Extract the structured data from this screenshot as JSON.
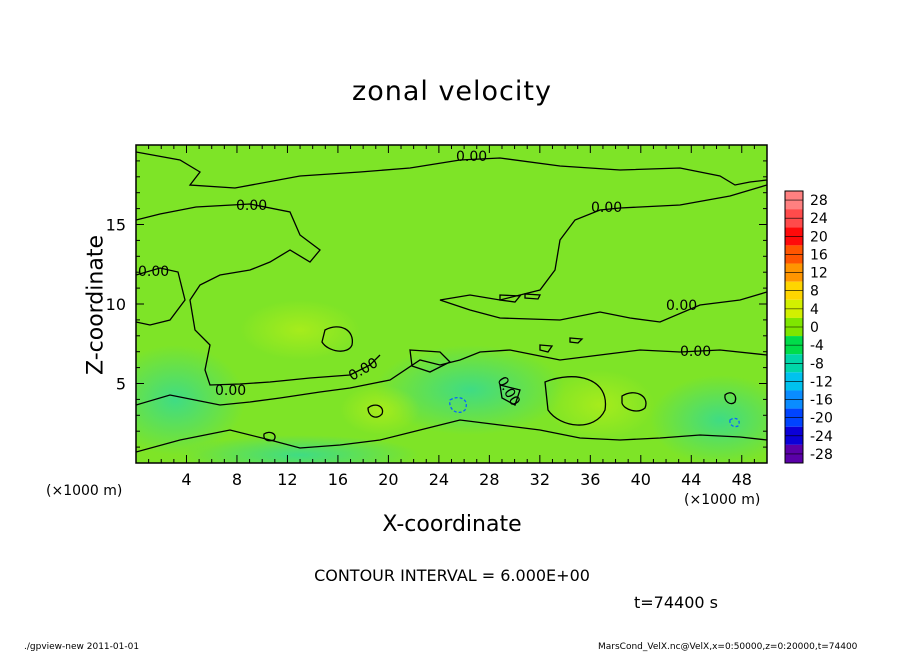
{
  "chart_data": {
    "type": "heatmap",
    "title": "zonal velocity",
    "xlabel": "X-coordinate",
    "ylabel": "Z-coordinate",
    "x_unit": "(×1000 m)",
    "xlim": [
      0,
      50
    ],
    "ylim": [
      0,
      20
    ],
    "x_ticks": [
      4,
      8,
      12,
      16,
      20,
      24,
      28,
      32,
      36,
      40,
      44,
      48
    ],
    "y_ticks": [
      5,
      10,
      15
    ],
    "colorbar": {
      "levels": [
        28,
        24,
        20,
        16,
        12,
        8,
        4,
        0,
        -4,
        -8,
        -12,
        -16,
        -20,
        -24,
        -28
      ],
      "colors": [
        "#ff8080",
        "#ff4b4b",
        "#ff0a0a",
        "#ff5500",
        "#ff9500",
        "#ffd500",
        "#d2f000",
        "#7fe600",
        "#00dc4a",
        "#00d6a8",
        "#00c2ee",
        "#0a8cff",
        "#0044ff",
        "#0b00d8",
        "#5a00a8"
      ]
    },
    "contour_labels": [
      "0.00",
      "0.00",
      "0.00",
      "0.00",
      "0.00",
      "0.00",
      "0.00",
      "0.00",
      "0.00"
    ],
    "contour_interval": "CONTOUR INTERVAL = 6.000E+00",
    "time": "t=74400 s",
    "footer_left": "./gpview-new  2011-01-01",
    "footer_right": "MarsCond_VelX.nc@VelX,x=0:50000,z=0:20000,t=74400"
  }
}
